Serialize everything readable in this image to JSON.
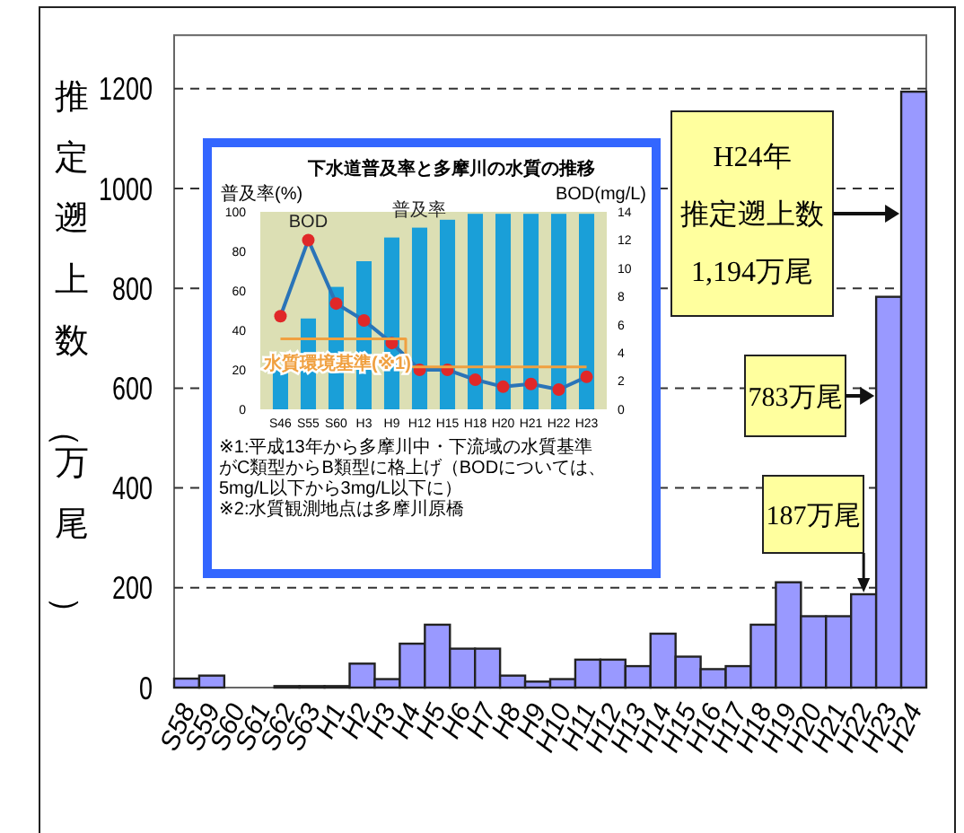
{
  "chart_data": [
    {
      "type": "bar",
      "ylabel": "推定遡上数（万尾）",
      "categories": [
        "S58",
        "S59",
        "S60",
        "S61",
        "S62",
        "S63",
        "H1",
        "H2",
        "H3",
        "H4",
        "H5",
        "H6",
        "H7",
        "H8",
        "H9",
        "H10",
        "H11",
        "H12",
        "H13",
        "H14",
        "H15",
        "H16",
        "H17",
        "H18",
        "H19",
        "H20",
        "H21",
        "H22",
        "H23",
        "H24"
      ],
      "values": [
        18,
        24,
        0,
        0,
        3,
        3,
        3,
        48,
        17,
        88,
        126,
        78,
        78,
        24,
        12,
        17,
        56,
        56,
        43,
        108,
        62,
        37,
        43,
        126,
        211,
        143,
        143,
        187,
        783,
        1194
      ],
      "color": "#9999ff",
      "ylim": [
        0,
        1300
      ],
      "yticks": [
        0,
        200,
        400,
        600,
        800,
        1000,
        1200
      ],
      "grid": "y",
      "annotations": [
        "H24年推定遡上数1,194万尾",
        "783万尾",
        "187万尾"
      ]
    },
    {
      "type": "bar",
      "title": "下水道普及率と多摩川の水質の推移",
      "ylabel": "普及率(%)",
      "y2label": "BOD(mg/L)",
      "categories": [
        "S46",
        "S55",
        "S60",
        "H3",
        "H9",
        "H12",
        "H15",
        "H18",
        "H20",
        "H21",
        "H22",
        "H23"
      ],
      "series": [
        {
          "name": "普及率",
          "type": "bar",
          "color": "#1a9fd8",
          "values": [
            20,
            46,
            62,
            75,
            87,
            92,
            96,
            99,
            99,
            99,
            99,
            99
          ]
        },
        {
          "name": "BOD",
          "type": "line",
          "axis": "y2",
          "color": "#2a74b8",
          "marker": "circle",
          "colors": [
            "#e02828",
            "#e02828",
            "#e02828",
            "#e02828",
            "#e02828",
            "#e02828",
            "#e02828",
            "#e02828",
            "#e02828",
            "#e02828",
            "#e02828",
            "#e02828"
          ],
          "values": [
            6.6,
            12,
            7.5,
            6.3,
            4.7,
            2.8,
            2.8,
            2.1,
            1.6,
            1.8,
            1.4,
            2.3
          ]
        },
        {
          "name": "水質環境基準(※1)",
          "type": "step",
          "axis": "y2",
          "color": "#f0a040",
          "values": [
            5,
            5,
            5,
            5,
            5,
            3,
            3,
            3,
            3,
            3,
            3,
            3
          ]
        }
      ],
      "ylim": [
        0,
        100
      ],
      "yticks": [
        0,
        20,
        40,
        60,
        80,
        100
      ],
      "y2lim": [
        0,
        14
      ],
      "y2ticks": [
        0,
        2,
        4,
        6,
        8,
        10,
        12,
        14
      ],
      "annotations": [
        "※1:平成13年から多摩川中・下流域の水質基準がC類型からB類型に格上げ（BODについては、5mg/L以下から3mg/L以下に）",
        "※2:水質観測地点は多摩川原橋"
      ]
    }
  ]
}
